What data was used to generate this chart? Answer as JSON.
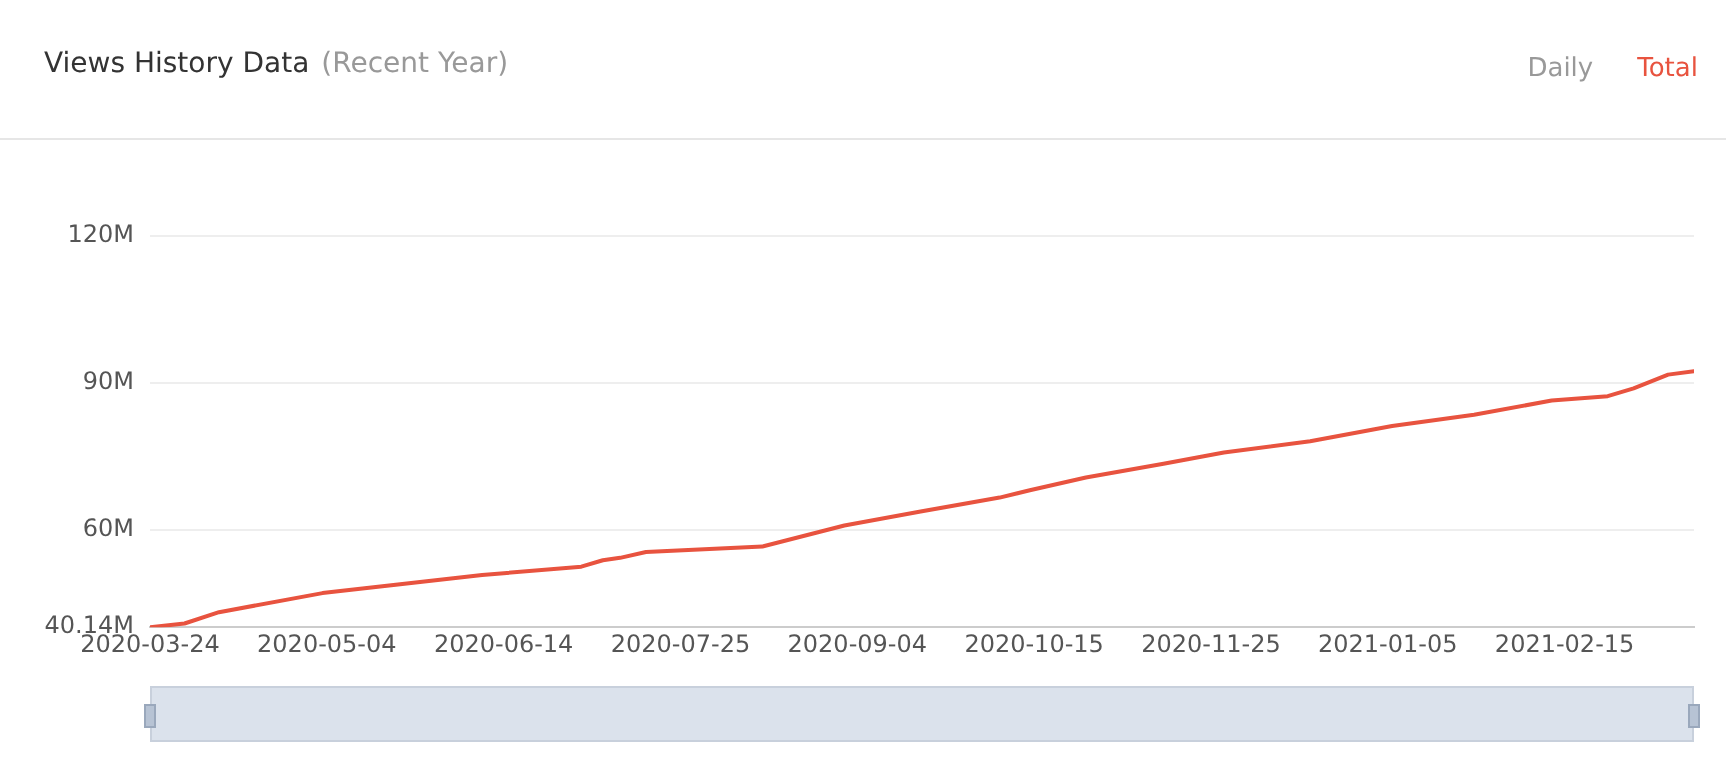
{
  "chart_data": {
    "type": "line",
    "title": "Views History Data",
    "subtitle": "(Recent Year)",
    "annotations": [
      "Daily",
      "Total"
    ],
    "x": [
      "2020-03-24",
      "2020-04-01",
      "2020-04-09",
      "2020-05-03",
      "2020-05-21",
      "2020-06-09",
      "2020-07-02",
      "2020-07-07",
      "2020-07-11",
      "2020-07-17",
      "2020-08-13",
      "2020-09-01",
      "2020-09-19",
      "2020-10-07",
      "2020-10-14",
      "2020-10-27",
      "2020-11-14",
      "2020-11-28",
      "2020-12-18",
      "2021-01-06",
      "2021-01-25",
      "2021-02-12",
      "2021-02-25",
      "2021-03-03",
      "2021-03-11",
      "2021-03-17"
    ],
    "series": [
      {
        "color": "#e8533f",
        "values": [
          40.14,
          40.9,
          43.2,
          47.1,
          48.9,
          50.8,
          52.5,
          53.8,
          54.3,
          55.5,
          56.6,
          60.9,
          63.8,
          66.6,
          68.1,
          70.7,
          73.5,
          75.8,
          78.1,
          81.2,
          83.5,
          86.4,
          87.3,
          88.9,
          91.7,
          92.4
        ]
      }
    ],
    "xlim": [
      "2020-03-24",
      "2021-03-17"
    ],
    "xticks": [
      "2020-03-24",
      "2020-05-04",
      "2020-06-14",
      "2020-07-25",
      "2020-09-04",
      "2020-10-15",
      "2020-11-25",
      "2021-01-05",
      "2021-02-15"
    ],
    "ylim": [
      40.14,
      120
    ],
    "yticks": [
      {
        "value": 40.14,
        "label": "40.14M"
      },
      {
        "value": 60,
        "label": "60M"
      },
      {
        "value": 90,
        "label": "90M"
      },
      {
        "value": 120,
        "label": "120M"
      }
    ],
    "grid": "y",
    "legend": false,
    "marker": "none",
    "line_style": "solid"
  }
}
